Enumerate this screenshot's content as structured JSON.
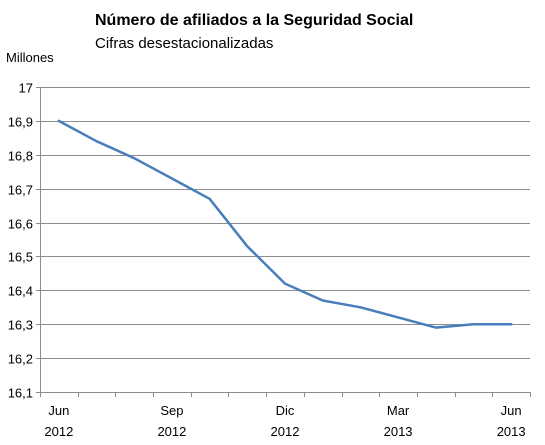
{
  "chart_data": {
    "type": "line",
    "title": "Número de afiliados a la Seguridad Social",
    "subtitle": "Cifras desestacionalizadas",
    "yunit": "Millones",
    "ylim": [
      16.1,
      17
    ],
    "yticks": [
      "16,1",
      "16,2",
      "16,3",
      "16,4",
      "16,5",
      "16,6",
      "16,7",
      "16,8",
      "16,9",
      "17"
    ],
    "xtick_labels": [
      {
        "month": "Jun",
        "year": "2012"
      },
      {
        "month": "Sep",
        "year": "2012"
      },
      {
        "month": "Dic",
        "year": "2012"
      },
      {
        "month": "Mar",
        "year": "2013"
      },
      {
        "month": "Jun",
        "year": "2013"
      }
    ],
    "x": [
      "2012-06",
      "2012-07",
      "2012-08",
      "2012-09",
      "2012-10",
      "2012-11",
      "2012-12",
      "2013-01",
      "2013-02",
      "2013-03",
      "2013-04",
      "2013-05",
      "2013-06"
    ],
    "series": [
      {
        "values": [
          16.9,
          16.84,
          16.79,
          16.73,
          16.67,
          16.53,
          16.42,
          16.37,
          16.35,
          16.32,
          16.29,
          16.3,
          16.3
        ]
      }
    ],
    "line_color": "#4A7EBB",
    "grid": true,
    "legend": "none"
  }
}
